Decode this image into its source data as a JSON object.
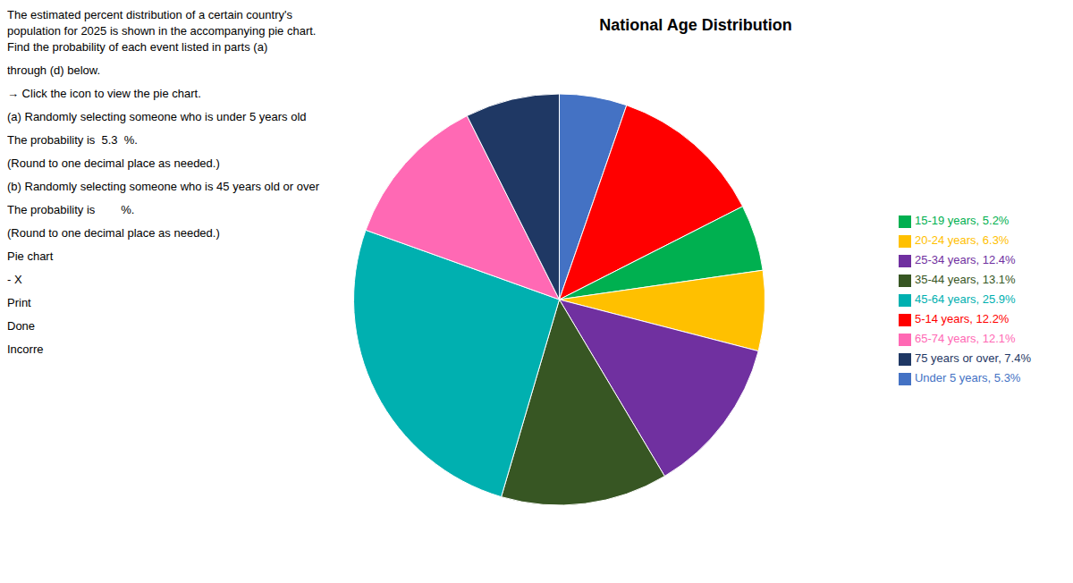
{
  "chart_data": {
    "type": "pie",
    "title": "National Age Distribution",
    "categories": [
      "Under 5 years, 5.3%",
      "5-14 years, 12.2%",
      "15-19 years, 5.2%",
      "20-24 years, 6.3%",
      "25-34 years, 12.4%",
      "35-44 years, 13.1%",
      "45-64 years, 25.9%",
      "65-74 years, 12.1%",
      "75 years or over, 7.4%"
    ],
    "values": [
      5.3,
      12.2,
      5.2,
      6.3,
      12.4,
      13.1,
      25.9,
      12.1,
      7.4
    ],
    "colors": [
      "#4472C4",
      "#FF0000",
      "#00B050",
      "#FFC000",
      "#7030A0",
      "#375623",
      "#00B0B0",
      "#FF69B4",
      "#1F3864"
    ],
    "legend": "right",
    "annotations": [
      "The estimated percent distribution of a certain country's population for 2025 is shown in the accompanying pie chart. Find the probability of each event listed in parts (a)",
      "through (d) below.",
      "→ Click the icon to view the pie chart.",
      "(a) Randomly selecting someone who is under 5 years old",
      "The probability is  5.3  %.",
      "(Round to one decimal place as needed.)",
      "(b) Randomly selecting someone who is 45 years old or over",
      "The probability is        %.",
      "(Round to one decimal place as needed.)",
      "Pie chart",
      "- X",
      "Print",
      "Done",
      "Incorre"
    ]
  }
}
